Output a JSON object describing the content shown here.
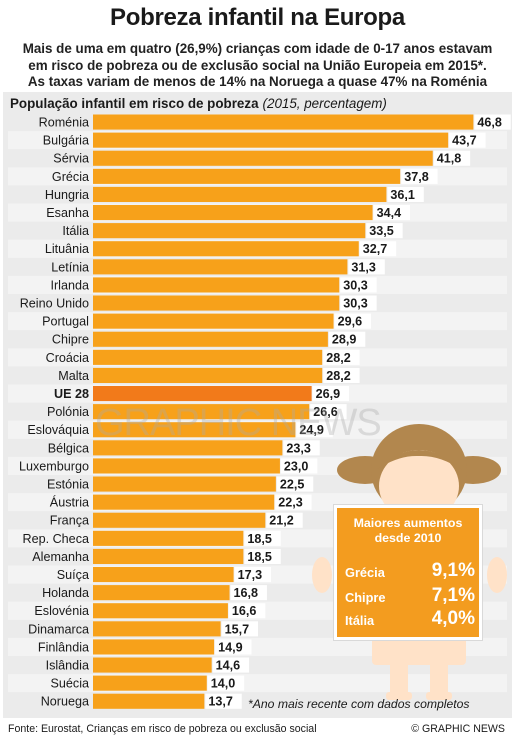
{
  "chart_data": {
    "type": "bar",
    "orientation": "horizontal",
    "title": "Pobreza infantil na Europa",
    "subtitle": [
      "Mais de uma em quatro (26,9%) crianças com idade de 0-17 anos estavam",
      "em risco de pobreza ou de exclusão social na União Europeia em 2015*.",
      "As taxas variam de menos de 14% na Noruega a quase 47% na Roménia"
    ],
    "ylabel": "População infantil em risco de pobreza",
    "unit_note": "(2015, percentagem)",
    "categories": [
      "Roménia",
      "Bulgária",
      "Sérvia",
      "Grécia",
      "Hungria",
      "Esanha",
      "Itália",
      "Lituânia",
      "Letínia",
      "Irlanda",
      "Reino Unido",
      "Portugal",
      "Chipre",
      "Croácia",
      "Malta",
      "UE 28",
      "Polónia",
      "Eslováquia",
      "Bélgica",
      "Luxemburgo",
      "Estónia",
      "Áustria",
      "França",
      "Rep. Checa",
      "Alemanha",
      "Suíça",
      "Holanda",
      "Eslovénia",
      "Dinamarca",
      "Finlândia",
      "Islândia",
      "Suécia",
      "Noruega"
    ],
    "values": [
      46.8,
      43.7,
      41.8,
      37.8,
      36.1,
      34.4,
      33.5,
      32.7,
      31.3,
      30.3,
      30.3,
      29.6,
      28.9,
      28.2,
      28.2,
      26.9,
      26.6,
      24.9,
      23.3,
      23.0,
      22.5,
      22.3,
      21.2,
      18.5,
      18.5,
      17.3,
      16.8,
      16.6,
      15.7,
      14.9,
      14.6,
      14.0,
      13.7
    ],
    "value_labels": [
      "46,8",
      "43,7",
      "41,8",
      "37,8",
      "36,1",
      "34,4",
      "33,5",
      "32,7",
      "31,3",
      "30,3",
      "30,3",
      "29,6",
      "28,9",
      "28,2",
      "28,2",
      "26,9",
      "26,6",
      "24,9",
      "23,3",
      "23,0",
      "22,5",
      "22,3",
      "21,2",
      "18,5",
      "18,5",
      "17,3",
      "16,8",
      "16,6",
      "15,7",
      "14,9",
      "14,6",
      "14,0",
      "13,7"
    ],
    "highlight": "UE 28",
    "xlim": [
      0,
      47
    ],
    "grid": false,
    "colors": {
      "bar": "#f7a11a",
      "highlight_bar": "#f27a1a",
      "highlight_label": "#f27a1a",
      "row_alt": "#f3f3f3",
      "panel": "#ebebeb"
    },
    "footnote": "*Ano mais recente com dados completos",
    "source": "Fonte: Eurostat, Crianças em risco de pobreza ou exclusão social",
    "credit": "© GRAPHIC NEWS"
  },
  "callout": {
    "title": [
      "Maiores aumentos",
      "desde 2010"
    ],
    "rows": [
      {
        "country": "Grécia",
        "value": "9,1%"
      },
      {
        "country": "Chipre",
        "value": "7,1%"
      },
      {
        "country": "Itália",
        "value": "4,0%"
      }
    ],
    "color": "#f39c1f"
  }
}
